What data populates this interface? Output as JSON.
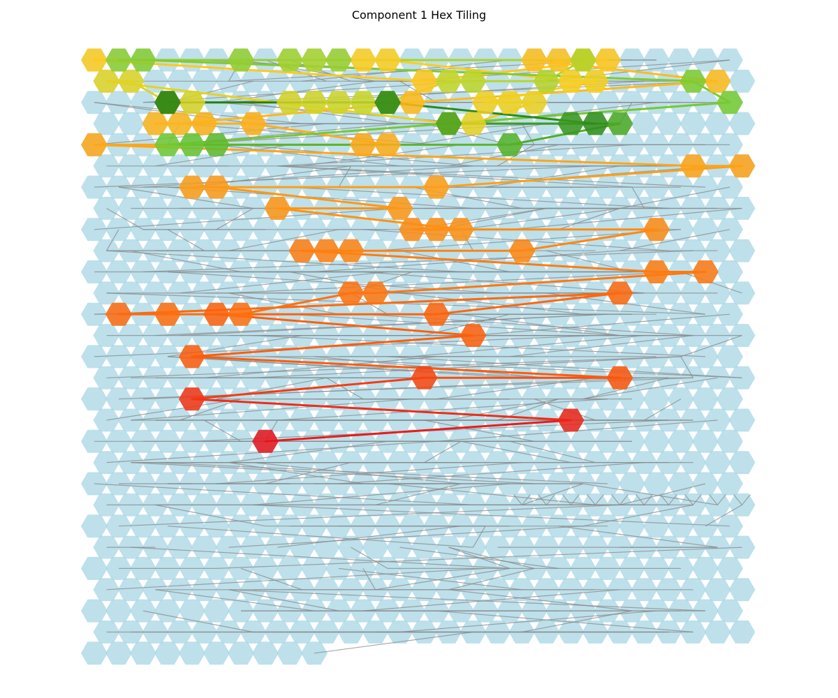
{
  "title": "Component 1 Hex Tiling",
  "chart_data": {
    "type": "hex-tiling",
    "title": "Component 1 Hex Tiling",
    "grid": {
      "rows": 29,
      "cols_even_row": 27,
      "cols_odd_row": 27,
      "last_row_cols": 10,
      "odd_row_offset": "half-hex right"
    },
    "colors": {
      "background_tile": "#add8e6",
      "background_edge": "#888888",
      "start": "#e8131b",
      "end": "#1e7d12"
    },
    "path": [
      {
        "col": 7,
        "row": 18
      },
      {
        "col": 19,
        "row": 17
      },
      {
        "col": 4,
        "row": 16
      },
      {
        "col": 13,
        "row": 15
      },
      {
        "col": 21,
        "row": 15
      },
      {
        "col": 4,
        "row": 14
      },
      {
        "col": 15,
        "row": 13
      },
      {
        "col": 5,
        "row": 12
      },
      {
        "col": 14,
        "row": 12
      },
      {
        "col": 21,
        "row": 11
      },
      {
        "col": 1,
        "row": 12
      },
      {
        "col": 3,
        "row": 12
      },
      {
        "col": 6,
        "row": 12
      },
      {
        "col": 10,
        "row": 11
      },
      {
        "col": 11,
        "row": 11
      },
      {
        "col": 25,
        "row": 10
      },
      {
        "col": 23,
        "row": 10
      },
      {
        "col": 8,
        "row": 9
      },
      {
        "col": 9,
        "row": 9
      },
      {
        "col": 10,
        "row": 9
      },
      {
        "col": 17,
        "row": 9
      },
      {
        "col": 23,
        "row": 8
      },
      {
        "col": 13,
        "row": 8
      },
      {
        "col": 14,
        "row": 8
      },
      {
        "col": 15,
        "row": 8
      },
      {
        "col": 7,
        "row": 7
      },
      {
        "col": 12,
        "row": 7
      },
      {
        "col": 5,
        "row": 6
      },
      {
        "col": 4,
        "row": 6
      },
      {
        "col": 14,
        "row": 6
      },
      {
        "col": 26,
        "row": 5
      },
      {
        "col": 24,
        "row": 5
      },
      {
        "col": 0,
        "row": 4
      },
      {
        "col": 11,
        "row": 4
      },
      {
        "col": 12,
        "row": 4
      },
      {
        "col": 6,
        "row": 3
      },
      {
        "col": 4,
        "row": 3
      },
      {
        "col": 2,
        "row": 3
      },
      {
        "col": 3,
        "row": 3
      },
      {
        "col": 13,
        "row": 2
      },
      {
        "col": 25,
        "row": 1
      },
      {
        "col": 18,
        "row": 0
      },
      {
        "col": 19,
        "row": 0
      },
      {
        "col": 20,
        "row": 0
      },
      {
        "col": 21,
        "row": 0
      },
      {
        "col": 13,
        "row": 1
      },
      {
        "col": 0,
        "row": 0
      },
      {
        "col": 11,
        "row": 0
      },
      {
        "col": 12,
        "row": 0
      },
      {
        "col": 19,
        "row": 1
      },
      {
        "col": 20,
        "row": 1
      },
      {
        "col": 16,
        "row": 2
      },
      {
        "col": 17,
        "row": 2
      },
      {
        "col": 18,
        "row": 2
      },
      {
        "col": 15,
        "row": 3
      },
      {
        "col": 14,
        "row": 3
      },
      {
        "col": 0,
        "row": 1
      },
      {
        "col": 1,
        "row": 1
      },
      {
        "col": 3,
        "row": 2
      },
      {
        "col": 4,
        "row": 2
      },
      {
        "col": 8,
        "row": 2
      },
      {
        "col": 9,
        "row": 2
      },
      {
        "col": 10,
        "row": 2
      },
      {
        "col": 11,
        "row": 2
      },
      {
        "col": 12,
        "row": 2
      },
      {
        "col": 14,
        "row": 1
      },
      {
        "col": 15,
        "row": 1
      },
      {
        "col": 18,
        "row": 1
      },
      {
        "col": 20,
        "row": 0
      },
      {
        "col": 9,
        "row": 0
      },
      {
        "col": 8,
        "row": 0
      },
      {
        "col": 10,
        "row": 0
      },
      {
        "col": 6,
        "row": 0
      },
      {
        "col": 1,
        "row": 0
      },
      {
        "col": 2,
        "row": 0
      },
      {
        "col": 24,
        "row": 1
      },
      {
        "col": 26,
        "row": 2
      },
      {
        "col": 3,
        "row": 4
      },
      {
        "col": 4,
        "row": 4
      },
      {
        "col": 5,
        "row": 4
      },
      {
        "col": 17,
        "row": 4
      },
      {
        "col": 21,
        "row": 3
      },
      {
        "col": 14,
        "row": 3
      },
      {
        "col": 19,
        "row": 3
      },
      {
        "col": 20,
        "row": 3
      },
      {
        "col": 12,
        "row": 2
      },
      {
        "col": 3,
        "row": 2
      }
    ]
  }
}
